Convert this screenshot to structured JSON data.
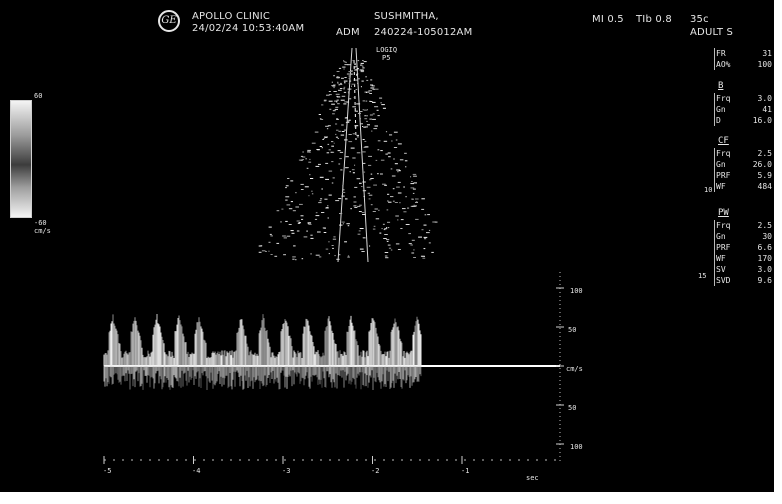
{
  "header": {
    "logo": "GE",
    "institution": "APOLLO CLINIC",
    "datetime": "24/02/24 10:53:40AM",
    "operator": "ADM",
    "patient_name": "SUSHMITHA,",
    "patient_id": "240224-105012AM",
    "mi": "MI 0.5",
    "tib": "TIb 0.8",
    "probe": "35c",
    "preset": "ADULT S"
  },
  "image_labels": {
    "color_scale_top": "60",
    "color_scale_bottom": "-60",
    "color_scale_unit": "cm/s",
    "roi_label_1": "LOGIQ",
    "roi_label_2": "P5"
  },
  "panel": {
    "side_markers": [
      "10",
      "15"
    ],
    "sections": [
      {
        "title": "",
        "rows": [
          {
            "label": "FR",
            "value": "31"
          },
          {
            "label": "AO%",
            "value": "100"
          }
        ]
      },
      {
        "title": "B",
        "rows": [
          {
            "label": "Frq",
            "value": "3.0"
          },
          {
            "label": "Gn",
            "value": "41"
          },
          {
            "label": "D",
            "value": "16.0"
          }
        ]
      },
      {
        "title": "CF",
        "rows": [
          {
            "label": "Frq",
            "value": "2.5"
          },
          {
            "label": "Gn",
            "value": "26.0"
          },
          {
            "label": "PRF",
            "value": "5.9"
          },
          {
            "label": "WF",
            "value": "484"
          }
        ]
      },
      {
        "title": "PW",
        "rows": [
          {
            "label": "Frq",
            "value": "2.5"
          },
          {
            "label": "Gn",
            "value": "30"
          },
          {
            "label": "PRF",
            "value": "6.6"
          },
          {
            "label": "WF",
            "value": "170"
          },
          {
            "label": "SV",
            "value": "3.0"
          },
          {
            "label": "SVD",
            "value": "9.6"
          }
        ]
      }
    ]
  },
  "doppler": {
    "velocity_labels": [
      "100",
      "50",
      "cm/s",
      "50",
      "100"
    ],
    "time_labels": [
      "-5",
      "-4",
      "-3",
      "-2",
      "-1"
    ],
    "time_unit": "sec"
  }
}
